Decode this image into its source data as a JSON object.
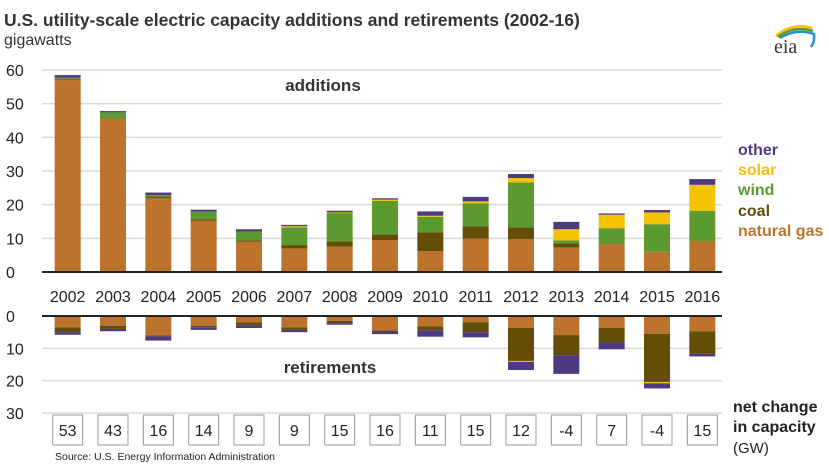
{
  "header": {
    "title": "U.S. utility-scale electric capacity additions and retirements (2002-16)",
    "unit": "gigawatts",
    "logo_text": "eia"
  },
  "legend": [
    {
      "label": "other",
      "color": "#4e3a82"
    },
    {
      "label": "solar",
      "color": "#f5c300"
    },
    {
      "label": "wind",
      "color": "#5b9a2f"
    },
    {
      "label": "coal",
      "color": "#634d07"
    },
    {
      "label": "natural gas",
      "color": "#bd732b"
    }
  ],
  "net_change": {
    "label_line1": "net change",
    "label_line2": "in capacity",
    "unit": "(GW)"
  },
  "source": "Source: U.S. Energy Information Administration",
  "chart_data": [
    {
      "type": "bar",
      "stacked": true,
      "title": "additions",
      "ylabel": "gigawatts",
      "ylim": [
        0,
        60
      ],
      "yticks": [
        0,
        10,
        20,
        30,
        40,
        50,
        60
      ],
      "grid": true,
      "legend_position": "right",
      "categories": [
        "2002",
        "2003",
        "2004",
        "2005",
        "2006",
        "2007",
        "2008",
        "2009",
        "2010",
        "2011",
        "2012",
        "2013",
        "2014",
        "2015",
        "2016"
      ],
      "series": [
        {
          "name": "natural gas",
          "color": "#bd732b",
          "values": [
            57,
            45.5,
            22,
            15.3,
            9,
            7,
            7.5,
            9.5,
            6.2,
            9.9,
            9.8,
            7.3,
            8.3,
            6,
            9.2
          ]
        },
        {
          "name": "coal",
          "color": "#634d07",
          "values": [
            0.2,
            0.2,
            0.4,
            0.4,
            0.4,
            1,
            1.6,
            1.7,
            5.6,
            3.7,
            3.4,
            1.2,
            0,
            0,
            0
          ]
        },
        {
          "name": "wind",
          "color": "#5b9a2f",
          "values": [
            0.5,
            1.7,
            0.4,
            2.2,
            2.6,
            5.3,
            8.4,
            9.9,
            4.6,
            6.8,
            13.4,
            0.9,
            4.7,
            8.2,
            9
          ]
        },
        {
          "name": "solar",
          "color": "#f5c300",
          "values": [
            0,
            0,
            0,
            0,
            0,
            0.3,
            0.2,
            0.4,
            0.3,
            0.6,
            1.3,
            3.3,
            4,
            3.5,
            7.7
          ]
        },
        {
          "name": "other",
          "color": "#4e3a82",
          "values": [
            0.8,
            0.4,
            0.8,
            0.6,
            0.7,
            0.4,
            0.5,
            0.4,
            1.3,
            1.3,
            1.2,
            2.2,
            0.4,
            0.7,
            1.7
          ]
        }
      ]
    },
    {
      "type": "bar",
      "stacked": true,
      "title": "retirements",
      "ylim": [
        0,
        30
      ],
      "yticks": [
        0,
        10,
        20,
        30
      ],
      "inverted": true,
      "grid": true,
      "categories": [
        "2002",
        "2003",
        "2004",
        "2005",
        "2006",
        "2007",
        "2008",
        "2009",
        "2010",
        "2011",
        "2012",
        "2013",
        "2014",
        "2015",
        "2016"
      ],
      "series": [
        {
          "name": "natural gas",
          "color": "#bd732b",
          "values": [
            3.5,
            3,
            6,
            3,
            2,
            3.5,
            1.5,
            4.5,
            3.2,
            1.9,
            3.7,
            5.9,
            3.7,
            5.5,
            4.7
          ]
        },
        {
          "name": "coal",
          "color": "#634d07",
          "values": [
            1.5,
            1,
            0.3,
            0.5,
            0.9,
            0.8,
            0.7,
            0.3,
            1.2,
            3.1,
            10.2,
            6.2,
            4.5,
            14.9,
            7
          ]
        },
        {
          "name": "solar",
          "color": "#f5c300",
          "values": [
            0,
            0,
            0,
            0,
            0,
            0,
            0,
            0,
            0,
            0,
            0.3,
            0,
            0,
            0.4,
            0
          ]
        },
        {
          "name": "other",
          "color": "#4e3a82",
          "values": [
            0.8,
            0.7,
            1.3,
            0.8,
            0.8,
            0.7,
            0.5,
            0.8,
            2,
            1.6,
            2.5,
            5.8,
            2.1,
            1.6,
            0.8
          ]
        }
      ]
    },
    {
      "type": "table",
      "title": "net change in capacity (GW)",
      "categories": [
        "2002",
        "2003",
        "2004",
        "2005",
        "2006",
        "2007",
        "2008",
        "2009",
        "2010",
        "2011",
        "2012",
        "2013",
        "2014",
        "2015",
        "2016"
      ],
      "values": [
        53,
        43,
        16,
        14,
        9,
        9,
        15,
        16,
        11,
        15,
        12,
        -4,
        7,
        -4,
        15
      ]
    }
  ]
}
